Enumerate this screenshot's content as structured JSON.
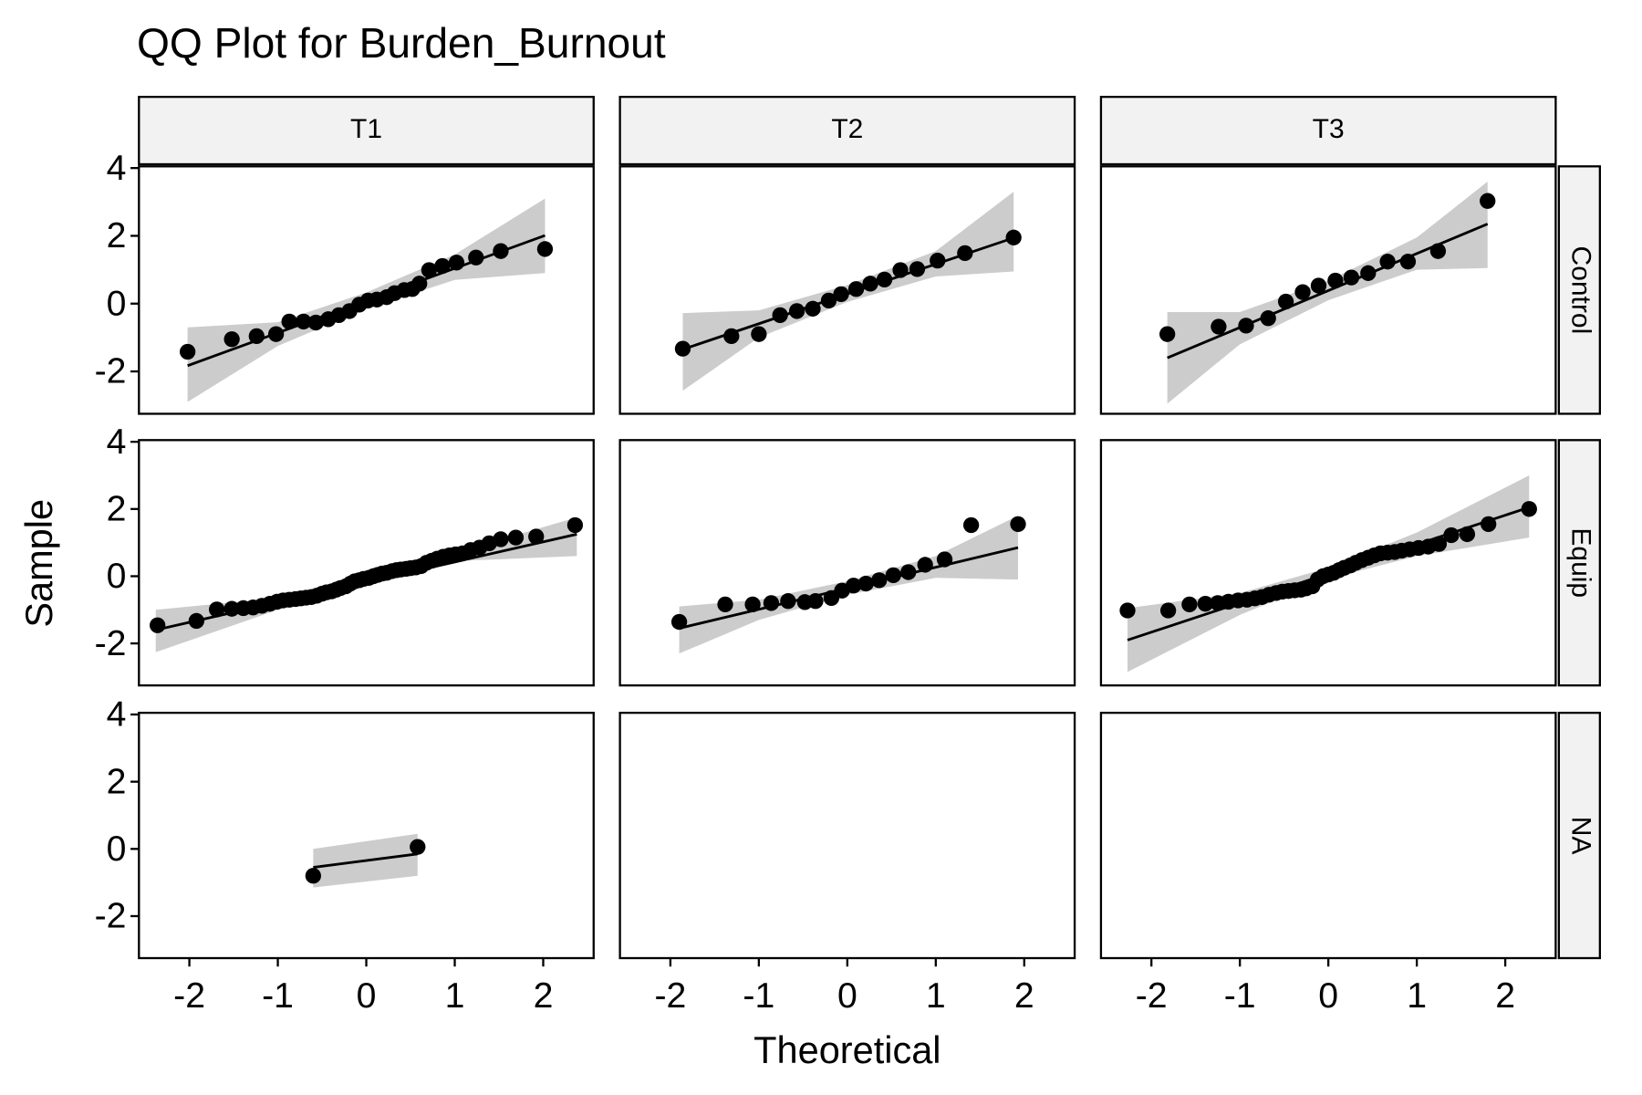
{
  "chart_data": {
    "type": "scatter",
    "title": "QQ Plot for Burden_Burnout",
    "xlabel": "Theoretical",
    "ylabel": "Sample",
    "columns": [
      "T1",
      "T2",
      "T3"
    ],
    "rows": [
      "Control",
      "Equip",
      "NA"
    ],
    "xlim": [
      -2.57,
      2.57
    ],
    "ylim": [
      -3.25,
      4.05
    ],
    "xticks": [
      -2,
      -1,
      0,
      1,
      2
    ],
    "yticks": [
      -2,
      0,
      2,
      4
    ],
    "point_color": "#000000",
    "line_color": "#000000",
    "band_color": "#cccccc",
    "strip_color": "#f2f2f2",
    "panels": [
      [
        {
          "x": [
            -2.02,
            -1.52,
            -1.24,
            -1.02,
            -0.87,
            -0.71,
            -0.57,
            -0.43,
            -0.31,
            -0.19,
            -0.08,
            0.02,
            0.12,
            0.23,
            0.32,
            0.43,
            0.52,
            0.6,
            0.71,
            0.86,
            1.02,
            1.24,
            1.52,
            2.02
          ],
          "y": [
            -1.42,
            -1.05,
            -0.96,
            -0.9,
            -0.53,
            -0.53,
            -0.56,
            -0.46,
            -0.34,
            -0.22,
            -0.03,
            0.09,
            0.12,
            0.19,
            0.31,
            0.4,
            0.43,
            0.59,
            0.99,
            1.11,
            1.21,
            1.36,
            1.55,
            1.61
          ],
          "line": {
            "x": [
              -2.02,
              2.02
            ],
            "y": [
              -1.83,
              2.01
            ]
          },
          "band": {
            "x": [
              -2.02,
              -1,
              0,
              1,
              2.02
            ],
            "lower": [
              -2.9,
              -1.25,
              -0.15,
              0.7,
              0.9
            ],
            "upper": [
              -0.7,
              -0.55,
              0.33,
              1.45,
              3.1
            ]
          }
        },
        {
          "x": [
            -1.86,
            -1.31,
            -1.0,
            -0.76,
            -0.57,
            -0.39,
            -0.21,
            -0.07,
            0.1,
            0.26,
            0.42,
            0.6,
            0.79,
            1.02,
            1.33,
            1.88
          ],
          "y": [
            -1.33,
            -0.96,
            -0.9,
            -0.34,
            -0.22,
            -0.15,
            0.09,
            0.28,
            0.43,
            0.59,
            0.71,
            0.99,
            1.02,
            1.27,
            1.49,
            1.95
          ],
          "line": {
            "x": [
              -1.86,
              1.88
            ],
            "y": [
              -1.35,
              1.94
            ]
          },
          "band": {
            "x": [
              -1.86,
              -1,
              0,
              1,
              1.88
            ],
            "lower": [
              -2.57,
              -1.0,
              0.05,
              0.8,
              0.95
            ],
            "upper": [
              -0.28,
              -0.2,
              0.55,
              1.55,
              3.3
            ]
          }
        },
        {
          "x": [
            -1.82,
            -1.24,
            -0.93,
            -0.68,
            -0.48,
            -0.29,
            -0.11,
            0.08,
            0.26,
            0.45,
            0.67,
            0.9,
            1.24,
            1.8
          ],
          "y": [
            -0.9,
            -0.68,
            -0.65,
            -0.43,
            0.06,
            0.34,
            0.53,
            0.68,
            0.77,
            0.9,
            1.24,
            1.24,
            1.55,
            3.03
          ],
          "line": {
            "x": [
              -1.82,
              1.8
            ],
            "y": [
              -1.6,
              2.35
            ]
          },
          "band": {
            "x": [
              -1.82,
              -1,
              0,
              1,
              1.8
            ],
            "lower": [
              -2.95,
              -1.2,
              0.1,
              1.0,
              1.05
            ],
            "upper": [
              -0.25,
              -0.25,
              0.68,
              1.95,
              3.6
            ]
          }
        }
      ],
      [
        {
          "x": [
            -2.36,
            -1.92,
            -1.69,
            -1.52,
            -1.39,
            -1.28,
            -1.18,
            -1.09,
            -1.01,
            -0.94,
            -0.87,
            -0.8,
            -0.74,
            -0.68,
            -0.62,
            -0.56,
            -0.5,
            -0.45,
            -0.39,
            -0.34,
            -0.29,
            -0.23,
            -0.18,
            -0.13,
            -0.08,
            -0.03,
            0.03,
            0.08,
            0.13,
            0.18,
            0.23,
            0.29,
            0.34,
            0.39,
            0.45,
            0.5,
            0.56,
            0.62,
            0.68,
            0.74,
            0.8,
            0.87,
            0.94,
            1.01,
            1.09,
            1.18,
            1.28,
            1.39,
            1.52,
            1.69,
            1.92,
            2.36
          ],
          "y": [
            -1.46,
            -1.33,
            -0.99,
            -0.97,
            -0.95,
            -0.93,
            -0.88,
            -0.82,
            -0.76,
            -0.72,
            -0.7,
            -0.68,
            -0.66,
            -0.64,
            -0.62,
            -0.58,
            -0.52,
            -0.48,
            -0.45,
            -0.4,
            -0.35,
            -0.3,
            -0.22,
            -0.15,
            -0.12,
            -0.08,
            -0.05,
            0.0,
            0.04,
            0.08,
            0.1,
            0.15,
            0.18,
            0.2,
            0.22,
            0.24,
            0.26,
            0.3,
            0.4,
            0.46,
            0.52,
            0.58,
            0.62,
            0.65,
            0.68,
            0.78,
            0.85,
            0.98,
            1.1,
            1.15,
            1.18,
            1.52
          ],
          "line": {
            "x": [
              -2.38,
              2.38
            ],
            "y": [
              -1.6,
              1.25
            ]
          },
          "band": {
            "x": [
              -2.38,
              -1,
              0,
              1,
              2.38
            ],
            "lower": [
              -2.26,
              -1.0,
              -0.3,
              0.45,
              0.6
            ],
            "upper": [
              -1.0,
              -0.65,
              -0.05,
              0.7,
              1.75
            ]
          }
        },
        {
          "x": [
            -1.9,
            -1.38,
            -1.07,
            -0.86,
            -0.67,
            -0.48,
            -0.36,
            -0.18,
            -0.06,
            0.07,
            0.21,
            0.36,
            0.52,
            0.69,
            0.88,
            1.1,
            1.4,
            1.93
          ],
          "y": [
            -1.36,
            -0.84,
            -0.84,
            -0.8,
            -0.74,
            -0.77,
            -0.74,
            -0.65,
            -0.43,
            -0.28,
            -0.22,
            -0.12,
            0.03,
            0.12,
            0.34,
            0.5,
            1.52,
            1.55
          ],
          "line": {
            "x": [
              -1.9,
              1.93
            ],
            "y": [
              -1.55,
              0.85
            ]
          },
          "band": {
            "x": [
              -1.9,
              -1,
              0,
              1,
              1.93
            ],
            "lower": [
              -2.3,
              -1.3,
              -0.55,
              -0.05,
              -0.1
            ],
            "upper": [
              -0.9,
              -0.7,
              -0.15,
              0.6,
              1.8
            ]
          }
        },
        {
          "x": [
            -2.27,
            -1.81,
            -1.57,
            -1.39,
            -1.25,
            -1.13,
            -1.02,
            -0.92,
            -0.83,
            -0.75,
            -0.67,
            -0.59,
            -0.52,
            -0.45,
            -0.38,
            -0.31,
            -0.25,
            -0.18,
            -0.12,
            -0.06,
            0,
            0.06,
            0.12,
            0.18,
            0.25,
            0.31,
            0.38,
            0.45,
            0.52,
            0.59,
            0.67,
            0.75,
            0.83,
            0.92,
            1.02,
            1.13,
            1.25,
            1.39,
            1.57,
            1.81,
            2.27
          ],
          "y": [
            -1.02,
            -1.02,
            -0.84,
            -0.82,
            -0.8,
            -0.76,
            -0.72,
            -0.7,
            -0.66,
            -0.62,
            -0.55,
            -0.5,
            -0.46,
            -0.44,
            -0.42,
            -0.4,
            -0.36,
            -0.3,
            -0.1,
            0.0,
            0.05,
            0.1,
            0.18,
            0.25,
            0.32,
            0.4,
            0.48,
            0.55,
            0.62,
            0.68,
            0.7,
            0.72,
            0.76,
            0.8,
            0.84,
            0.88,
            0.96,
            1.22,
            1.25,
            1.55,
            2.0
          ],
          "line": {
            "x": [
              -2.27,
              2.27
            ],
            "y": [
              -1.9,
              2.05
            ]
          },
          "band": {
            "x": [
              -2.27,
              -1,
              0,
              1,
              2.27
            ],
            "lower": [
              -2.85,
              -1.15,
              -0.08,
              0.6,
              1.15
            ],
            "upper": [
              -0.95,
              -0.5,
              0.25,
              1.3,
              3.0
            ]
          }
        }
      ],
      [
        {
          "x": [
            -0.6,
            0.58
          ],
          "y": [
            -0.8,
            0.06
          ],
          "line": {
            "x": [
              -0.6,
              0.58
            ],
            "y": [
              -0.55,
              -0.15
            ]
          },
          "band": {
            "x": [
              -0.6,
              0.58
            ],
            "lower": [
              -1.15,
              -0.8
            ],
            "upper": [
              0.0,
              0.45
            ]
          }
        },
        null,
        null
      ]
    ]
  }
}
